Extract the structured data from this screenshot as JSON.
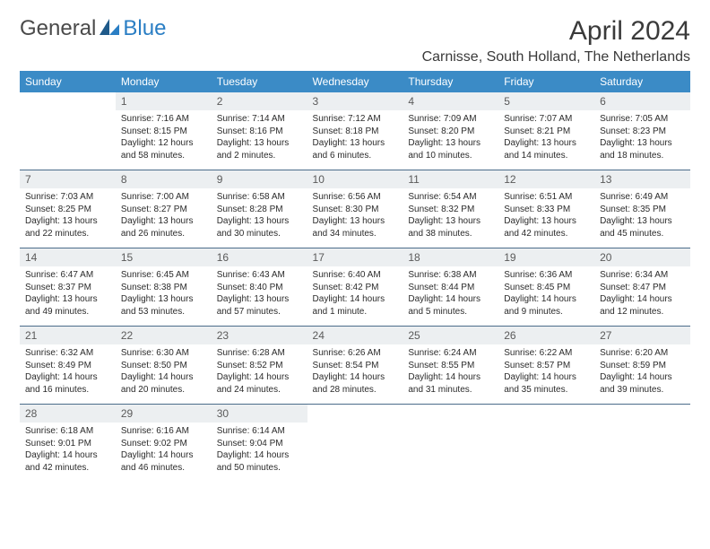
{
  "logo": {
    "part1": "General",
    "part2": "Blue",
    "color_blue": "#2a7ec4",
    "color_dark": "#4a4a4a"
  },
  "title": "April 2024",
  "location": "Carnisse, South Holland, The Netherlands",
  "headers": [
    "Sunday",
    "Monday",
    "Tuesday",
    "Wednesday",
    "Thursday",
    "Friday",
    "Saturday"
  ],
  "header_bg": "#3b8bc6",
  "header_fg": "#ffffff",
  "row_border_color": "#4b6c8a",
  "daynum_bg": "#eceff1",
  "rows": [
    [
      null,
      {
        "num": "1",
        "sunrise": "Sunrise: 7:16 AM",
        "sunset": "Sunset: 8:15 PM",
        "daylight": "Daylight: 12 hours and 58 minutes."
      },
      {
        "num": "2",
        "sunrise": "Sunrise: 7:14 AM",
        "sunset": "Sunset: 8:16 PM",
        "daylight": "Daylight: 13 hours and 2 minutes."
      },
      {
        "num": "3",
        "sunrise": "Sunrise: 7:12 AM",
        "sunset": "Sunset: 8:18 PM",
        "daylight": "Daylight: 13 hours and 6 minutes."
      },
      {
        "num": "4",
        "sunrise": "Sunrise: 7:09 AM",
        "sunset": "Sunset: 8:20 PM",
        "daylight": "Daylight: 13 hours and 10 minutes."
      },
      {
        "num": "5",
        "sunrise": "Sunrise: 7:07 AM",
        "sunset": "Sunset: 8:21 PM",
        "daylight": "Daylight: 13 hours and 14 minutes."
      },
      {
        "num": "6",
        "sunrise": "Sunrise: 7:05 AM",
        "sunset": "Sunset: 8:23 PM",
        "daylight": "Daylight: 13 hours and 18 minutes."
      }
    ],
    [
      {
        "num": "7",
        "sunrise": "Sunrise: 7:03 AM",
        "sunset": "Sunset: 8:25 PM",
        "daylight": "Daylight: 13 hours and 22 minutes."
      },
      {
        "num": "8",
        "sunrise": "Sunrise: 7:00 AM",
        "sunset": "Sunset: 8:27 PM",
        "daylight": "Daylight: 13 hours and 26 minutes."
      },
      {
        "num": "9",
        "sunrise": "Sunrise: 6:58 AM",
        "sunset": "Sunset: 8:28 PM",
        "daylight": "Daylight: 13 hours and 30 minutes."
      },
      {
        "num": "10",
        "sunrise": "Sunrise: 6:56 AM",
        "sunset": "Sunset: 8:30 PM",
        "daylight": "Daylight: 13 hours and 34 minutes."
      },
      {
        "num": "11",
        "sunrise": "Sunrise: 6:54 AM",
        "sunset": "Sunset: 8:32 PM",
        "daylight": "Daylight: 13 hours and 38 minutes."
      },
      {
        "num": "12",
        "sunrise": "Sunrise: 6:51 AM",
        "sunset": "Sunset: 8:33 PM",
        "daylight": "Daylight: 13 hours and 42 minutes."
      },
      {
        "num": "13",
        "sunrise": "Sunrise: 6:49 AM",
        "sunset": "Sunset: 8:35 PM",
        "daylight": "Daylight: 13 hours and 45 minutes."
      }
    ],
    [
      {
        "num": "14",
        "sunrise": "Sunrise: 6:47 AM",
        "sunset": "Sunset: 8:37 PM",
        "daylight": "Daylight: 13 hours and 49 minutes."
      },
      {
        "num": "15",
        "sunrise": "Sunrise: 6:45 AM",
        "sunset": "Sunset: 8:38 PM",
        "daylight": "Daylight: 13 hours and 53 minutes."
      },
      {
        "num": "16",
        "sunrise": "Sunrise: 6:43 AM",
        "sunset": "Sunset: 8:40 PM",
        "daylight": "Daylight: 13 hours and 57 minutes."
      },
      {
        "num": "17",
        "sunrise": "Sunrise: 6:40 AM",
        "sunset": "Sunset: 8:42 PM",
        "daylight": "Daylight: 14 hours and 1 minute."
      },
      {
        "num": "18",
        "sunrise": "Sunrise: 6:38 AM",
        "sunset": "Sunset: 8:44 PM",
        "daylight": "Daylight: 14 hours and 5 minutes."
      },
      {
        "num": "19",
        "sunrise": "Sunrise: 6:36 AM",
        "sunset": "Sunset: 8:45 PM",
        "daylight": "Daylight: 14 hours and 9 minutes."
      },
      {
        "num": "20",
        "sunrise": "Sunrise: 6:34 AM",
        "sunset": "Sunset: 8:47 PM",
        "daylight": "Daylight: 14 hours and 12 minutes."
      }
    ],
    [
      {
        "num": "21",
        "sunrise": "Sunrise: 6:32 AM",
        "sunset": "Sunset: 8:49 PM",
        "daylight": "Daylight: 14 hours and 16 minutes."
      },
      {
        "num": "22",
        "sunrise": "Sunrise: 6:30 AM",
        "sunset": "Sunset: 8:50 PM",
        "daylight": "Daylight: 14 hours and 20 minutes."
      },
      {
        "num": "23",
        "sunrise": "Sunrise: 6:28 AM",
        "sunset": "Sunset: 8:52 PM",
        "daylight": "Daylight: 14 hours and 24 minutes."
      },
      {
        "num": "24",
        "sunrise": "Sunrise: 6:26 AM",
        "sunset": "Sunset: 8:54 PM",
        "daylight": "Daylight: 14 hours and 28 minutes."
      },
      {
        "num": "25",
        "sunrise": "Sunrise: 6:24 AM",
        "sunset": "Sunset: 8:55 PM",
        "daylight": "Daylight: 14 hours and 31 minutes."
      },
      {
        "num": "26",
        "sunrise": "Sunrise: 6:22 AM",
        "sunset": "Sunset: 8:57 PM",
        "daylight": "Daylight: 14 hours and 35 minutes."
      },
      {
        "num": "27",
        "sunrise": "Sunrise: 6:20 AM",
        "sunset": "Sunset: 8:59 PM",
        "daylight": "Daylight: 14 hours and 39 minutes."
      }
    ],
    [
      {
        "num": "28",
        "sunrise": "Sunrise: 6:18 AM",
        "sunset": "Sunset: 9:01 PM",
        "daylight": "Daylight: 14 hours and 42 minutes."
      },
      {
        "num": "29",
        "sunrise": "Sunrise: 6:16 AM",
        "sunset": "Sunset: 9:02 PM",
        "daylight": "Daylight: 14 hours and 46 minutes."
      },
      {
        "num": "30",
        "sunrise": "Sunrise: 6:14 AM",
        "sunset": "Sunset: 9:04 PM",
        "daylight": "Daylight: 14 hours and 50 minutes."
      },
      null,
      null,
      null,
      null
    ]
  ]
}
